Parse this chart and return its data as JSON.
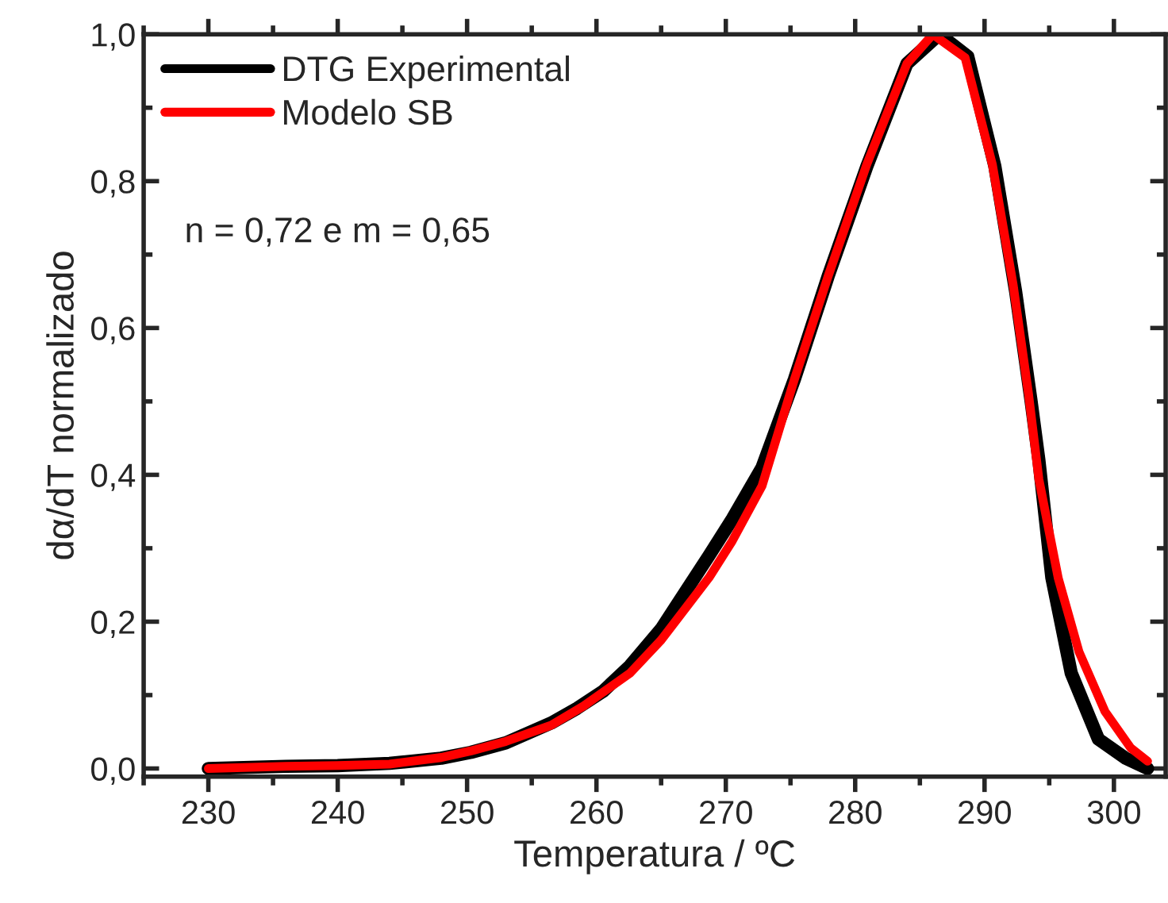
{
  "chart_data": {
    "type": "line",
    "xlabel": "Temperatura / ºC",
    "ylabel": "dα/dT normalizado",
    "xlim": [
      225,
      304
    ],
    "xticks": [
      230,
      240,
      250,
      260,
      270,
      280,
      290,
      300
    ],
    "ylim": [
      -0.011,
      1.0
    ],
    "yticks": [
      {
        "value": 0,
        "label": "0,0"
      },
      {
        "value": 0.2,
        "label": "0,2"
      },
      {
        "value": 0.4,
        "label": "0,4"
      },
      {
        "value": 0.6,
        "label": "0,6"
      },
      {
        "value": 0.8,
        "label": "0,8"
      },
      {
        "value": 1.0,
        "label": "1,0"
      }
    ],
    "grid": false,
    "legend": "top left",
    "marker": "none",
    "line_style": "solid",
    "annotations": [
      "n = 0,72 e m = 0,65"
    ],
    "series": [
      {
        "name": "DTG Experimental",
        "color": "#000000",
        "x": [
          230,
          236,
          240,
          244,
          248,
          250.3,
          253,
          256.5,
          258.5,
          260.5,
          262.6,
          265,
          268.7,
          270.5,
          272.8,
          275.3,
          277.9,
          280.9,
          284,
          286.5,
          288.7,
          290.8,
          292.4,
          293.6,
          294.2,
          295.2,
          296.7,
          298.8,
          300.9,
          302.6
        ],
        "values": [
          0.0,
          0.003,
          0.004,
          0.007,
          0.014,
          0.022,
          0.035,
          0.062,
          0.082,
          0.105,
          0.14,
          0.19,
          0.29,
          0.34,
          0.41,
          0.53,
          0.67,
          0.82,
          0.96,
          1.0,
          0.97,
          0.82,
          0.65,
          0.5,
          0.42,
          0.26,
          0.13,
          0.04,
          0.014,
          0.0
        ]
      },
      {
        "name": "Modelo SB",
        "color": "#ff0000",
        "x": [
          230,
          236,
          240,
          244,
          248,
          250.3,
          253,
          256.5,
          259,
          262.6,
          265,
          268.7,
          270.5,
          272.8,
          275.3,
          277.9,
          280.9,
          284,
          286,
          288.5,
          290.6,
          292.2,
          293.4,
          294.2,
          295.7,
          297.3,
          299.3,
          301.3,
          302.6
        ],
        "values": [
          0.0,
          0.003,
          0.004,
          0.006,
          0.015,
          0.024,
          0.037,
          0.059,
          0.085,
          0.13,
          0.175,
          0.26,
          0.31,
          0.385,
          0.53,
          0.67,
          0.823,
          0.96,
          1.0,
          0.968,
          0.823,
          0.66,
          0.51,
          0.394,
          0.259,
          0.159,
          0.078,
          0.028,
          0.01
        ]
      }
    ]
  }
}
